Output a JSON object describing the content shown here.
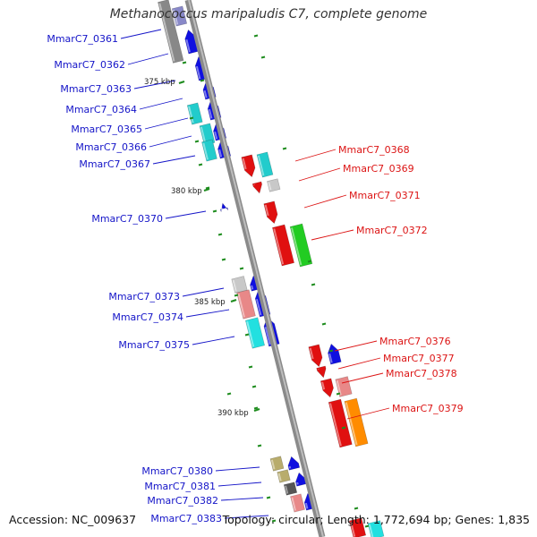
{
  "title": "Methanococcus maripaludis C7, complete genome",
  "accession": "Accession: NC_009637",
  "summary": "Topology: circular; Length: 1,772,694 bp; Genes: 1,835",
  "colors": {
    "label_left": "#1414c8",
    "label_right": "#dc1414",
    "backbone": "#8a8a8a",
    "tick": "#1e8c1e"
  },
  "ruler": [
    {
      "label": "375 kbp"
    },
    {
      "label": "380 kbp"
    },
    {
      "label": "385 kbp"
    },
    {
      "label": "390 kbp"
    }
  ],
  "genes_left": [
    {
      "label": "MmarC7_0361"
    },
    {
      "label": "MmarC7_0362"
    },
    {
      "label": "MmarC7_0363"
    },
    {
      "label": "MmarC7_0364"
    },
    {
      "label": "MmarC7_0365"
    },
    {
      "label": "MmarC7_0366"
    },
    {
      "label": "MmarC7_0367"
    },
    {
      "label": "MmarC7_0370"
    },
    {
      "label": "MmarC7_0373"
    },
    {
      "label": "MmarC7_0374"
    },
    {
      "label": "MmarC7_0375"
    },
    {
      "label": "MmarC7_0380"
    },
    {
      "label": "MmarC7_0381"
    },
    {
      "label": "MmarC7_0382"
    },
    {
      "label": "MmarC7_0383"
    }
  ],
  "genes_right": [
    {
      "label": "MmarC7_0368"
    },
    {
      "label": "MmarC7_0369"
    },
    {
      "label": "MmarC7_0371"
    },
    {
      "label": "MmarC7_0372"
    },
    {
      "label": "MmarC7_0376"
    },
    {
      "label": "MmarC7_0377"
    },
    {
      "label": "MmarC7_0378"
    },
    {
      "label": "MmarC7_0379"
    }
  ]
}
